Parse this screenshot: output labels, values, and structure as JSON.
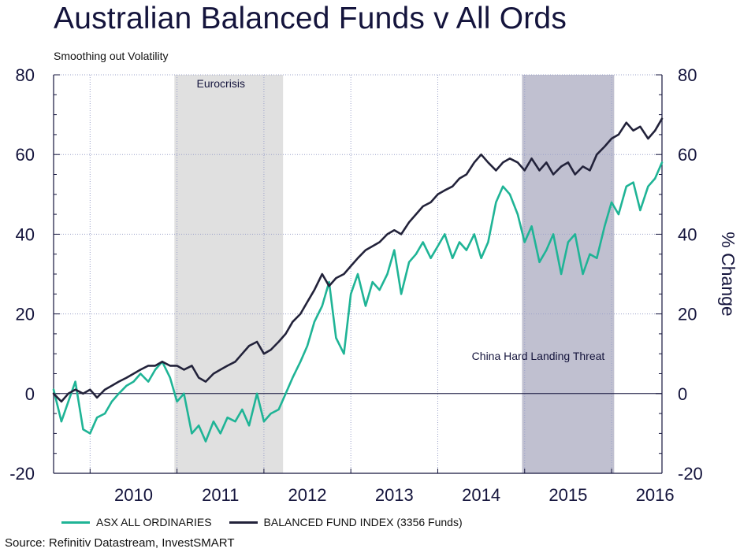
{
  "title": "Australian Balanced Funds v All Ords",
  "subtitle": "Smoothing out Volatility",
  "source": "Source: Refinitiv Datastream, InvestSMART",
  "colors": {
    "asx": "#1fb496",
    "balanced": "#22223a",
    "eurocrisis_band": "#e0e0e0",
    "china_band": "#c0c0d0",
    "axis": "#14143c",
    "grid": "#9aa0c8"
  },
  "chart_data": {
    "type": "line",
    "xlabel": "",
    "ylabel_right": "% Change",
    "ylim": [
      -20,
      80
    ],
    "yticks": [
      -20,
      0,
      20,
      40,
      60,
      80
    ],
    "yticks_right": [
      -20,
      0,
      20,
      40,
      60,
      80
    ],
    "xlim": [
      2009.58,
      2016.58
    ],
    "xtick_labels": [
      "2010",
      "2011",
      "2012",
      "2013",
      "2014",
      "2015",
      "2016"
    ],
    "shaded_regions": [
      {
        "label": "Eurocrisis",
        "start": 2010.97,
        "end": 2012.22
      },
      {
        "label": "China Hard Landing Threat",
        "start": 2014.97,
        "end": 2016.03
      }
    ],
    "series": [
      {
        "name": "ASX ALL ORDINARIES",
        "x": [
          2009.58,
          2009.67,
          2009.75,
          2009.83,
          2009.92,
          2010.0,
          2010.08,
          2010.17,
          2010.25,
          2010.33,
          2010.42,
          2010.5,
          2010.58,
          2010.67,
          2010.75,
          2010.83,
          2010.92,
          2011.0,
          2011.08,
          2011.17,
          2011.25,
          2011.33,
          2011.42,
          2011.5,
          2011.58,
          2011.67,
          2011.75,
          2011.83,
          2011.92,
          2012.0,
          2012.08,
          2012.17,
          2012.25,
          2012.33,
          2012.42,
          2012.5,
          2012.58,
          2012.67,
          2012.75,
          2012.83,
          2012.92,
          2013.0,
          2013.08,
          2013.17,
          2013.25,
          2013.33,
          2013.42,
          2013.5,
          2013.58,
          2013.67,
          2013.75,
          2013.83,
          2013.92,
          2014.0,
          2014.08,
          2014.17,
          2014.25,
          2014.33,
          2014.42,
          2014.5,
          2014.58,
          2014.67,
          2014.75,
          2014.83,
          2014.92,
          2015.0,
          2015.08,
          2015.17,
          2015.25,
          2015.33,
          2015.42,
          2015.5,
          2015.58,
          2015.67,
          2015.75,
          2015.83,
          2015.92,
          2016.0,
          2016.08,
          2016.17,
          2016.25,
          2016.33,
          2016.42,
          2016.5,
          2016.58
        ],
        "values": [
          1,
          -7,
          -2,
          3,
          -9,
          -10,
          -6,
          -5,
          -2,
          0,
          2,
          3,
          5,
          3,
          6,
          8,
          4,
          -2,
          0,
          -10,
          -8,
          -12,
          -7,
          -10,
          -6,
          -7,
          -4,
          -8,
          0,
          -7,
          -5,
          -4,
          0,
          4,
          8,
          12,
          18,
          22,
          28,
          14,
          10,
          25,
          30,
          22,
          28,
          26,
          30,
          36,
          25,
          33,
          35,
          38,
          34,
          37,
          40,
          34,
          38,
          36,
          40,
          34,
          38,
          48,
          52,
          50,
          45,
          38,
          42,
          33,
          36,
          40,
          30,
          38,
          40,
          30,
          35,
          34,
          42,
          48,
          45,
          52,
          53,
          46,
          52,
          54,
          58
        ]
      },
      {
        "name": "BALANCED FUND INDEX (3356 Funds)",
        "x": [
          2009.58,
          2009.67,
          2009.75,
          2009.83,
          2009.92,
          2010.0,
          2010.08,
          2010.17,
          2010.25,
          2010.33,
          2010.42,
          2010.5,
          2010.58,
          2010.67,
          2010.75,
          2010.83,
          2010.92,
          2011.0,
          2011.08,
          2011.17,
          2011.25,
          2011.33,
          2011.42,
          2011.5,
          2011.58,
          2011.67,
          2011.75,
          2011.83,
          2011.92,
          2012.0,
          2012.08,
          2012.17,
          2012.25,
          2012.33,
          2012.42,
          2012.5,
          2012.58,
          2012.67,
          2012.75,
          2012.83,
          2012.92,
          2013.0,
          2013.08,
          2013.17,
          2013.25,
          2013.33,
          2013.42,
          2013.5,
          2013.58,
          2013.67,
          2013.75,
          2013.83,
          2013.92,
          2014.0,
          2014.08,
          2014.17,
          2014.25,
          2014.33,
          2014.42,
          2014.5,
          2014.58,
          2014.67,
          2014.75,
          2014.83,
          2014.92,
          2015.0,
          2015.08,
          2015.17,
          2015.25,
          2015.33,
          2015.42,
          2015.5,
          2015.58,
          2015.67,
          2015.75,
          2015.83,
          2015.92,
          2016.0,
          2016.08,
          2016.17,
          2016.25,
          2016.33,
          2016.42,
          2016.5,
          2016.58
        ],
        "values": [
          0,
          -2,
          0,
          1,
          0,
          1,
          -1,
          1,
          2,
          3,
          4,
          5,
          6,
          7,
          7,
          8,
          7,
          7,
          6,
          7,
          4,
          3,
          5,
          6,
          7,
          8,
          10,
          12,
          13,
          10,
          11,
          13,
          15,
          18,
          20,
          23,
          26,
          30,
          27,
          29,
          30,
          32,
          34,
          36,
          37,
          38,
          40,
          41,
          40,
          43,
          45,
          47,
          48,
          50,
          51,
          52,
          54,
          55,
          58,
          60,
          58,
          56,
          58,
          59,
          58,
          56,
          59,
          56,
          58,
          55,
          57,
          58,
          55,
          57,
          56,
          60,
          62,
          64,
          65,
          68,
          66,
          67,
          64,
          66,
          69
        ]
      }
    ],
    "legend": {
      "placement": "bottom"
    }
  }
}
